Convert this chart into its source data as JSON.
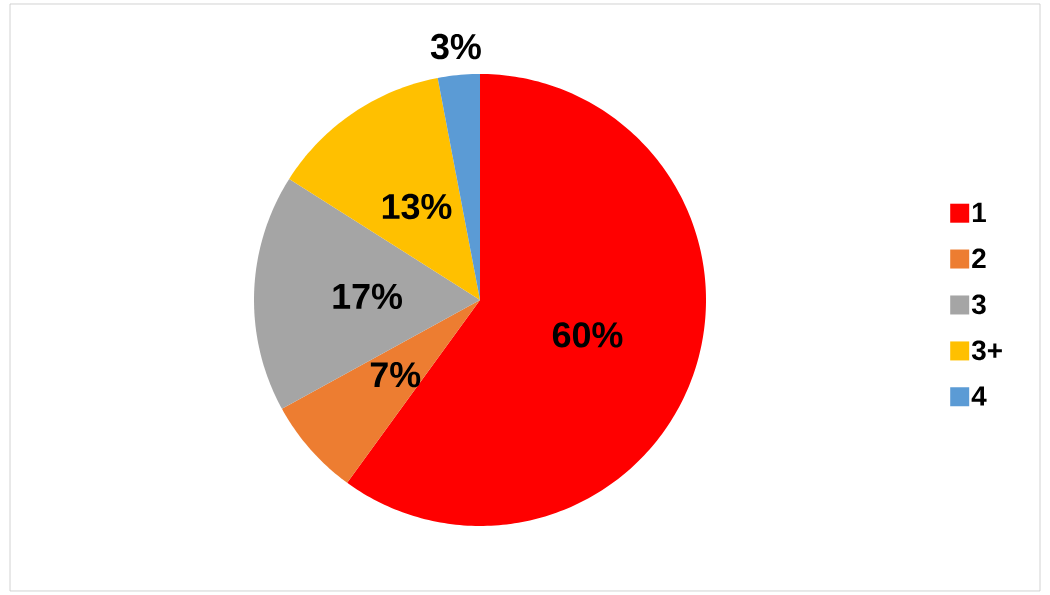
{
  "chart_data": {
    "type": "pie",
    "categories": [
      "1",
      "2",
      "3",
      "3+",
      "4"
    ],
    "values": [
      60,
      7,
      17,
      13,
      3
    ],
    "colors": [
      "#ff0000",
      "#ed7d31",
      "#a5a5a5",
      "#ffc000",
      "#5b9bd5"
    ],
    "value_labels": [
      "60%",
      "7%",
      "17%",
      "13%",
      "3%"
    ],
    "legend": "right"
  }
}
